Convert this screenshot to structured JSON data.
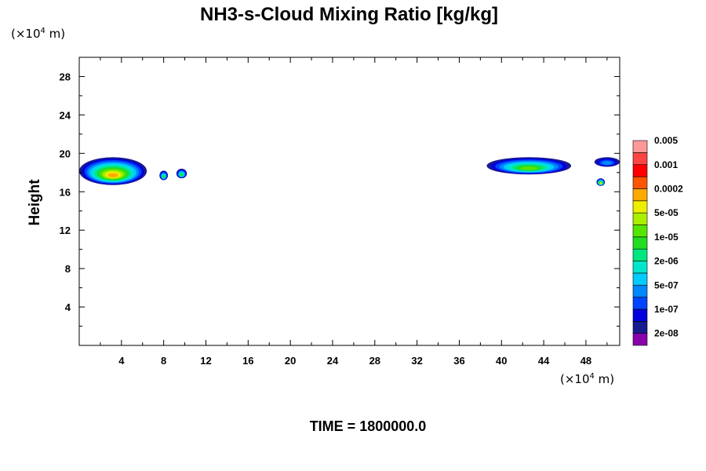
{
  "chart_data": {
    "type": "heatmap",
    "title": "NH3-s-Cloud Mixing Ratio [kg/kg]",
    "xlabel": "",
    "ylabel": "Height",
    "x_unit": {
      "prefix": "(×10",
      "exponent": "4",
      "suffix": " m)"
    },
    "y_unit": {
      "prefix": "(×10",
      "exponent": "4",
      "suffix": " m)"
    },
    "xlim": [
      0,
      51.2
    ],
    "ylim": [
      0,
      30
    ],
    "x_ticks": [
      4,
      8,
      12,
      16,
      20,
      24,
      28,
      32,
      36,
      40,
      44,
      48
    ],
    "x_tick_labels": [
      "4",
      "8",
      "12",
      "16",
      "20",
      "24",
      "28",
      "32",
      "36",
      "40",
      "44",
      "48"
    ],
    "y_ticks": [
      4,
      8,
      12,
      16,
      20,
      24,
      28
    ],
    "y_tick_labels": [
      "4",
      "8",
      "12",
      "16",
      "20",
      "24",
      "28"
    ],
    "grid": false,
    "legend_placement": "right",
    "colorbar": {
      "colors": [
        "#8800aa",
        "#1a1a90",
        "#0000dd",
        "#0044ff",
        "#0088ff",
        "#00ccff",
        "#00e6cc",
        "#00e680",
        "#22dd22",
        "#55e600",
        "#aaee00",
        "#eeee00",
        "#ffaa00",
        "#ff5500",
        "#ff0000",
        "#ff4444",
        "#ff9999"
      ],
      "labels": [
        "2e-08",
        "1e-07",
        "5e-07",
        "2e-06",
        "1e-05",
        "5e-05",
        "0.0002",
        "0.001",
        "0.005"
      ]
    },
    "cloud_regions": [
      {
        "x": [
          0,
          6.4
        ],
        "y": [
          16.7,
          19.6
        ],
        "peak_level": 12,
        "description_level": "0.0002"
      },
      {
        "x": [
          7.6,
          8.4
        ],
        "y": [
          17.2,
          18.2
        ],
        "peak_level": 8
      },
      {
        "x": [
          9.2,
          10.2
        ],
        "y": [
          17.4,
          18.4
        ],
        "peak_level": 8
      },
      {
        "x": [
          38.6,
          46.6
        ],
        "y": [
          17.8,
          19.6
        ],
        "peak_level": 9
      },
      {
        "x": [
          48.8,
          51.2
        ],
        "y": [
          18.6,
          19.6
        ],
        "peak_level": 4
      },
      {
        "x": [
          49.0,
          49.8
        ],
        "y": [
          16.6,
          17.4
        ],
        "peak_level": 11
      }
    ],
    "footer": "TIME = 1800000.0"
  }
}
